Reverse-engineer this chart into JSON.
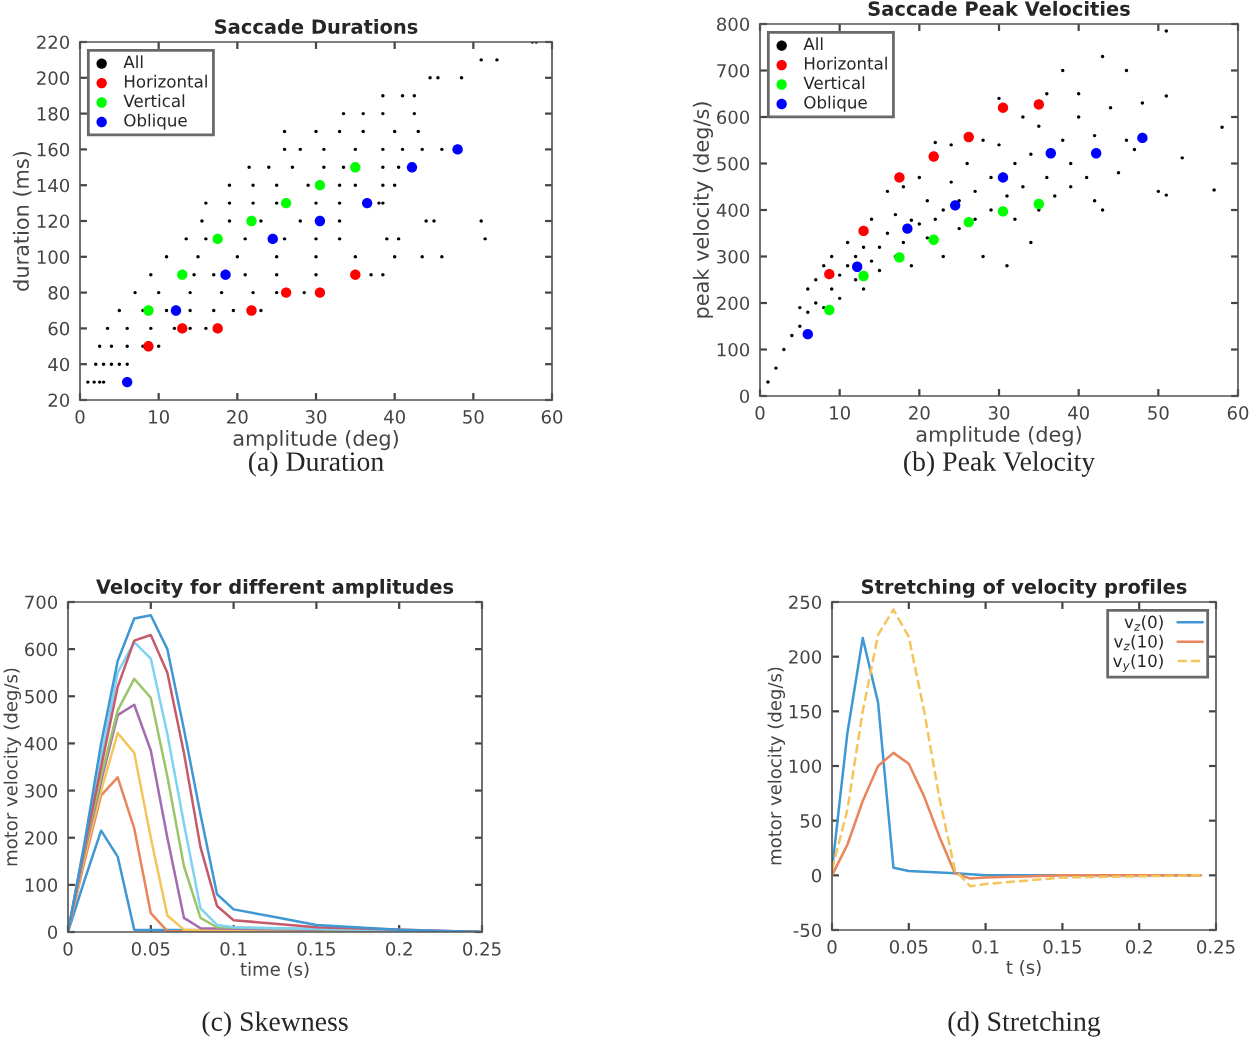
{
  "chart_data": [
    {
      "type": "scatter",
      "title": "Saccade Durations",
      "xlabel": "amplitude (deg)",
      "ylabel": "duration (ms)",
      "xlim": [
        0,
        60
      ],
      "ylim": [
        20,
        220
      ],
      "xticks": [
        0,
        10,
        20,
        30,
        40,
        50,
        60
      ],
      "yticks": [
        20,
        40,
        60,
        80,
        100,
        120,
        140,
        160,
        180,
        200,
        220
      ],
      "grid": false,
      "legend": "top left",
      "marker": "circle",
      "annotations": [
        "(a) Duration"
      ],
      "series": [
        {
          "name": "All",
          "color": "#000000",
          "x": [
            1,
            1.8,
            2.5,
            3,
            2,
            3,
            4,
            5,
            6,
            2.5,
            4,
            6,
            8,
            10,
            3.5,
            6,
            9,
            12,
            14,
            16,
            5,
            8,
            11,
            14,
            17,
            19.5,
            23,
            7,
            10,
            14,
            18,
            22,
            25,
            28.5,
            9,
            14.5,
            17,
            21,
            25,
            30,
            37,
            38.5,
            11,
            15,
            20,
            25,
            30,
            35,
            40,
            43.5,
            46,
            13.5,
            16,
            21,
            26,
            30,
            33,
            39,
            40.5,
            51.5,
            15.5,
            19,
            23,
            28,
            33,
            44,
            45,
            51,
            16,
            19,
            22,
            25,
            30,
            33,
            38,
            38.5,
            19,
            22,
            25,
            29,
            33,
            35,
            38.5,
            40,
            21.5,
            24,
            27,
            31,
            33.5,
            38.5,
            40.5,
            26,
            28,
            31,
            35,
            38.5,
            41,
            43.5,
            46,
            26,
            30,
            33,
            36,
            40,
            43,
            33.5,
            36,
            38.5,
            42.5,
            38.5,
            41,
            42.5,
            44.5,
            45.5,
            48.5,
            51,
            53,
            57.5,
            58
          ],
          "values": [
            30,
            30,
            30,
            30,
            40,
            40,
            40,
            40,
            40,
            50,
            50,
            50,
            50,
            50,
            60,
            60,
            60,
            60,
            60,
            60,
            70,
            70,
            70,
            70,
            70,
            70,
            70,
            80,
            80,
            80,
            80,
            80,
            80,
            80,
            90,
            90,
            90,
            90,
            90,
            90,
            90,
            90,
            100,
            100,
            100,
            100,
            100,
            100,
            100,
            100,
            100,
            110,
            110,
            110,
            110,
            110,
            110,
            110,
            110,
            110,
            120,
            120,
            120,
            120,
            120,
            120,
            120,
            120,
            130,
            130,
            130,
            130,
            130,
            130,
            130,
            130,
            140,
            140,
            140,
            140,
            140,
            140,
            140,
            140,
            150,
            150,
            150,
            150,
            150,
            150,
            150,
            160,
            160,
            160,
            160,
            160,
            160,
            160,
            160,
            170,
            170,
            170,
            170,
            170,
            170,
            180,
            180,
            180,
            180,
            190,
            190,
            190,
            200,
            200,
            200,
            210,
            210,
            220,
            220
          ]
        },
        {
          "name": "Horizontal",
          "color": "#ff0000",
          "x": [
            8.7,
            13,
            17.5,
            21.8,
            26.2,
            30.5,
            35
          ],
          "values": [
            50,
            60,
            60,
            70,
            80,
            80,
            90
          ]
        },
        {
          "name": "Vertical",
          "color": "#00ff00",
          "x": [
            8.7,
            13,
            17.5,
            21.8,
            26.2,
            30.5,
            35
          ],
          "values": [
            70,
            90,
            110,
            120,
            130,
            140,
            150
          ]
        },
        {
          "name": "Oblique",
          "color": "#0000ff",
          "x": [
            6,
            12.2,
            18.5,
            24.5,
            30.5,
            36.5,
            42.2,
            48
          ],
          "values": [
            30,
            70,
            90,
            110,
            120,
            130,
            150,
            160
          ]
        }
      ]
    },
    {
      "type": "scatter",
      "title": "Saccade Peak Velocities",
      "xlabel": "amplitude (deg)",
      "ylabel": "peak velocity (deg/s)",
      "xlim": [
        0,
        60
      ],
      "ylim": [
        0,
        800
      ],
      "xticks": [
        0,
        10,
        20,
        30,
        40,
        50,
        60
      ],
      "yticks": [
        0,
        100,
        200,
        300,
        400,
        500,
        600,
        700,
        800
      ],
      "grid": false,
      "legend": "top left",
      "marker": "circle",
      "annotations": [
        "(b) Peak Velocity"
      ],
      "series": [
        {
          "name": "All",
          "color": "#000000",
          "x": [
            1,
            2,
            3,
            4,
            5,
            5,
            6,
            6,
            7,
            7,
            8,
            8,
            9,
            9,
            10,
            10,
            11,
            11,
            12,
            12,
            13,
            13,
            14,
            14,
            15,
            15,
            16,
            16,
            17,
            17,
            18,
            18,
            19,
            19,
            20,
            20,
            21,
            21,
            22,
            22,
            23,
            23,
            24,
            24,
            25,
            25,
            26,
            27,
            27,
            28,
            28,
            29,
            29,
            30,
            30,
            31,
            31,
            32,
            32,
            33,
            33,
            34,
            34,
            35,
            35,
            36,
            36,
            37,
            38,
            38,
            39,
            39,
            40,
            40,
            41,
            42,
            42,
            43,
            43,
            44,
            45,
            46,
            46,
            47,
            48,
            50,
            51,
            51,
            51,
            53,
            57,
            58
          ],
          "values": [
            30,
            60,
            100,
            130,
            150,
            190,
            180,
            230,
            200,
            250,
            190,
            280,
            230,
            300,
            260,
            210,
            280,
            330,
            250,
            300,
            320,
            230,
            380,
            290,
            320,
            270,
            440,
            350,
            300,
            390,
            330,
            450,
            378,
            280,
            470,
            370,
            340,
            420,
            545,
            380,
            400,
            300,
            540,
            460,
            360,
            420,
            500,
            440,
            380,
            550,
            300,
            470,
            400,
            640,
            540,
            430,
            280,
            500,
            380,
            600,
            450,
            520,
            330,
            580,
            400,
            650,
            470,
            430,
            700,
            550,
            500,
            450,
            650,
            600,
            470,
            560,
            420,
            730,
            400,
            620,
            480,
            700,
            550,
            530,
            630,
            440,
            785,
            645,
            432,
            512,
            443,
            578
          ]
        },
        {
          "name": "Horizontal",
          "color": "#ff0000",
          "x": [
            8.7,
            13,
            17.5,
            21.8,
            26.2,
            30.5,
            35
          ],
          "values": [
            262,
            355,
            470,
            515,
            557,
            620,
            627
          ]
        },
        {
          "name": "Vertical",
          "color": "#00ff00",
          "x": [
            8.7,
            13,
            17.5,
            21.8,
            26.2,
            30.5,
            35
          ],
          "values": [
            185,
            258,
            298,
            336,
            374,
            397,
            413
          ]
        },
        {
          "name": "Oblique",
          "color": "#0000ff",
          "x": [
            6,
            12.2,
            18.5,
            24.5,
            30.5,
            36.5,
            42.2,
            48
          ],
          "values": [
            133,
            278,
            360,
            410,
            470,
            522,
            522,
            555
          ]
        }
      ]
    },
    {
      "type": "line",
      "title": "Velocity for different amplitudes",
      "xlabel": "time (s)",
      "ylabel": "motor velocity (deg/s)",
      "xlim": [
        0,
        0.25
      ],
      "ylim": [
        0,
        700
      ],
      "xticks": [
        0,
        0.05,
        0.1,
        0.15,
        0.2,
        0.25
      ],
      "yticks": [
        0,
        100,
        200,
        300,
        400,
        500,
        600,
        700
      ],
      "grid": false,
      "legend": false,
      "annotations": [
        "(c) Skewness"
      ],
      "series": [
        {
          "color": "#3f97d4",
          "x": [
            0,
            0.01,
            0.02,
            0.03,
            0.04,
            0.25
          ],
          "values": [
            0,
            110,
            215,
            160,
            5,
            0
          ]
        },
        {
          "color": "#e8855a",
          "x": [
            0,
            0.01,
            0.02,
            0.03,
            0.04,
            0.05,
            0.06,
            0.25
          ],
          "values": [
            0,
            150,
            290,
            328,
            220,
            40,
            2,
            0
          ]
        },
        {
          "color": "#f3c55a",
          "x": [
            0,
            0.01,
            0.02,
            0.03,
            0.04,
            0.05,
            0.06,
            0.07,
            0.25
          ],
          "values": [
            0,
            160,
            300,
            422,
            380,
            200,
            35,
            5,
            0
          ]
        },
        {
          "color": "#a46bb0",
          "x": [
            0,
            0.01,
            0.02,
            0.03,
            0.04,
            0.05,
            0.06,
            0.07,
            0.08,
            0.25
          ],
          "values": [
            0,
            170,
            320,
            460,
            482,
            385,
            200,
            30,
            8,
            0
          ]
        },
        {
          "color": "#9cc56a",
          "x": [
            0,
            0.01,
            0.02,
            0.03,
            0.04,
            0.05,
            0.06,
            0.07,
            0.08,
            0.09,
            0.25
          ],
          "values": [
            0,
            175,
            330,
            470,
            537,
            497,
            330,
            140,
            30,
            10,
            0
          ]
        },
        {
          "color": "#7fd2f2",
          "x": [
            0,
            0.01,
            0.02,
            0.03,
            0.04,
            0.05,
            0.06,
            0.07,
            0.08,
            0.09,
            0.1,
            0.25
          ],
          "values": [
            0,
            185,
            370,
            550,
            615,
            580,
            420,
            230,
            50,
            15,
            10,
            0
          ]
        },
        {
          "color": "#c75a6a",
          "x": [
            0,
            0.01,
            0.02,
            0.03,
            0.04,
            0.05,
            0.06,
            0.07,
            0.08,
            0.09,
            0.1,
            0.15,
            0.25
          ],
          "values": [
            0,
            180,
            350,
            520,
            618,
            630,
            550,
            380,
            180,
            55,
            25,
            10,
            0
          ]
        },
        {
          "color": "#3f97d4",
          "x": [
            0,
            0.01,
            0.02,
            0.03,
            0.04,
            0.05,
            0.06,
            0.07,
            0.08,
            0.09,
            0.1,
            0.12,
            0.15,
            0.2,
            0.25
          ],
          "values": [
            0,
            190,
            400,
            575,
            665,
            672,
            600,
            430,
            250,
            80,
            48,
            35,
            15,
            5,
            0
          ]
        }
      ]
    },
    {
      "type": "line",
      "title": "Stretching of velocity profiles",
      "xlabel": "t (s)",
      "ylabel": "motor velocity (deg/s)",
      "xlim": [
        0,
        0.25
      ],
      "ylim": [
        -50,
        250
      ],
      "xticks": [
        0,
        0.05,
        0.1,
        0.15,
        0.2,
        0.25
      ],
      "yticks": [
        -50,
        0,
        50,
        100,
        150,
        200,
        250
      ],
      "grid": false,
      "legend": "top right",
      "annotations": [
        "(d) Stretching"
      ],
      "series": [
        {
          "name": "v$_{z}$(0)",
          "color": "#3f97d4",
          "line_style": "solid",
          "x": [
            0,
            0.01,
            0.02,
            0.03,
            0.04,
            0.05,
            0.08,
            0.1,
            0.24
          ],
          "values": [
            5,
            130,
            217,
            158,
            7,
            4,
            2,
            0,
            0
          ]
        },
        {
          "name": "v$_{z}$(10)",
          "color": "#e8855a",
          "line_style": "solid",
          "x": [
            0,
            0.01,
            0.02,
            0.03,
            0.04,
            0.05,
            0.06,
            0.07,
            0.08,
            0.09,
            0.1,
            0.15,
            0.24
          ],
          "values": [
            0,
            28,
            68,
            100,
            112,
            102,
            72,
            35,
            2,
            -3,
            -2,
            0,
            0
          ]
        },
        {
          "name": "v$_{y}$(10)",
          "color": "#f3c55a",
          "line_style": "dashed",
          "x": [
            0,
            0.01,
            0.02,
            0.03,
            0.04,
            0.05,
            0.06,
            0.07,
            0.08,
            0.09,
            0.1,
            0.15,
            0.24
          ],
          "values": [
            5,
            60,
            150,
            220,
            243,
            218,
            150,
            70,
            5,
            -10,
            -8,
            -2,
            0
          ]
        }
      ]
    }
  ]
}
